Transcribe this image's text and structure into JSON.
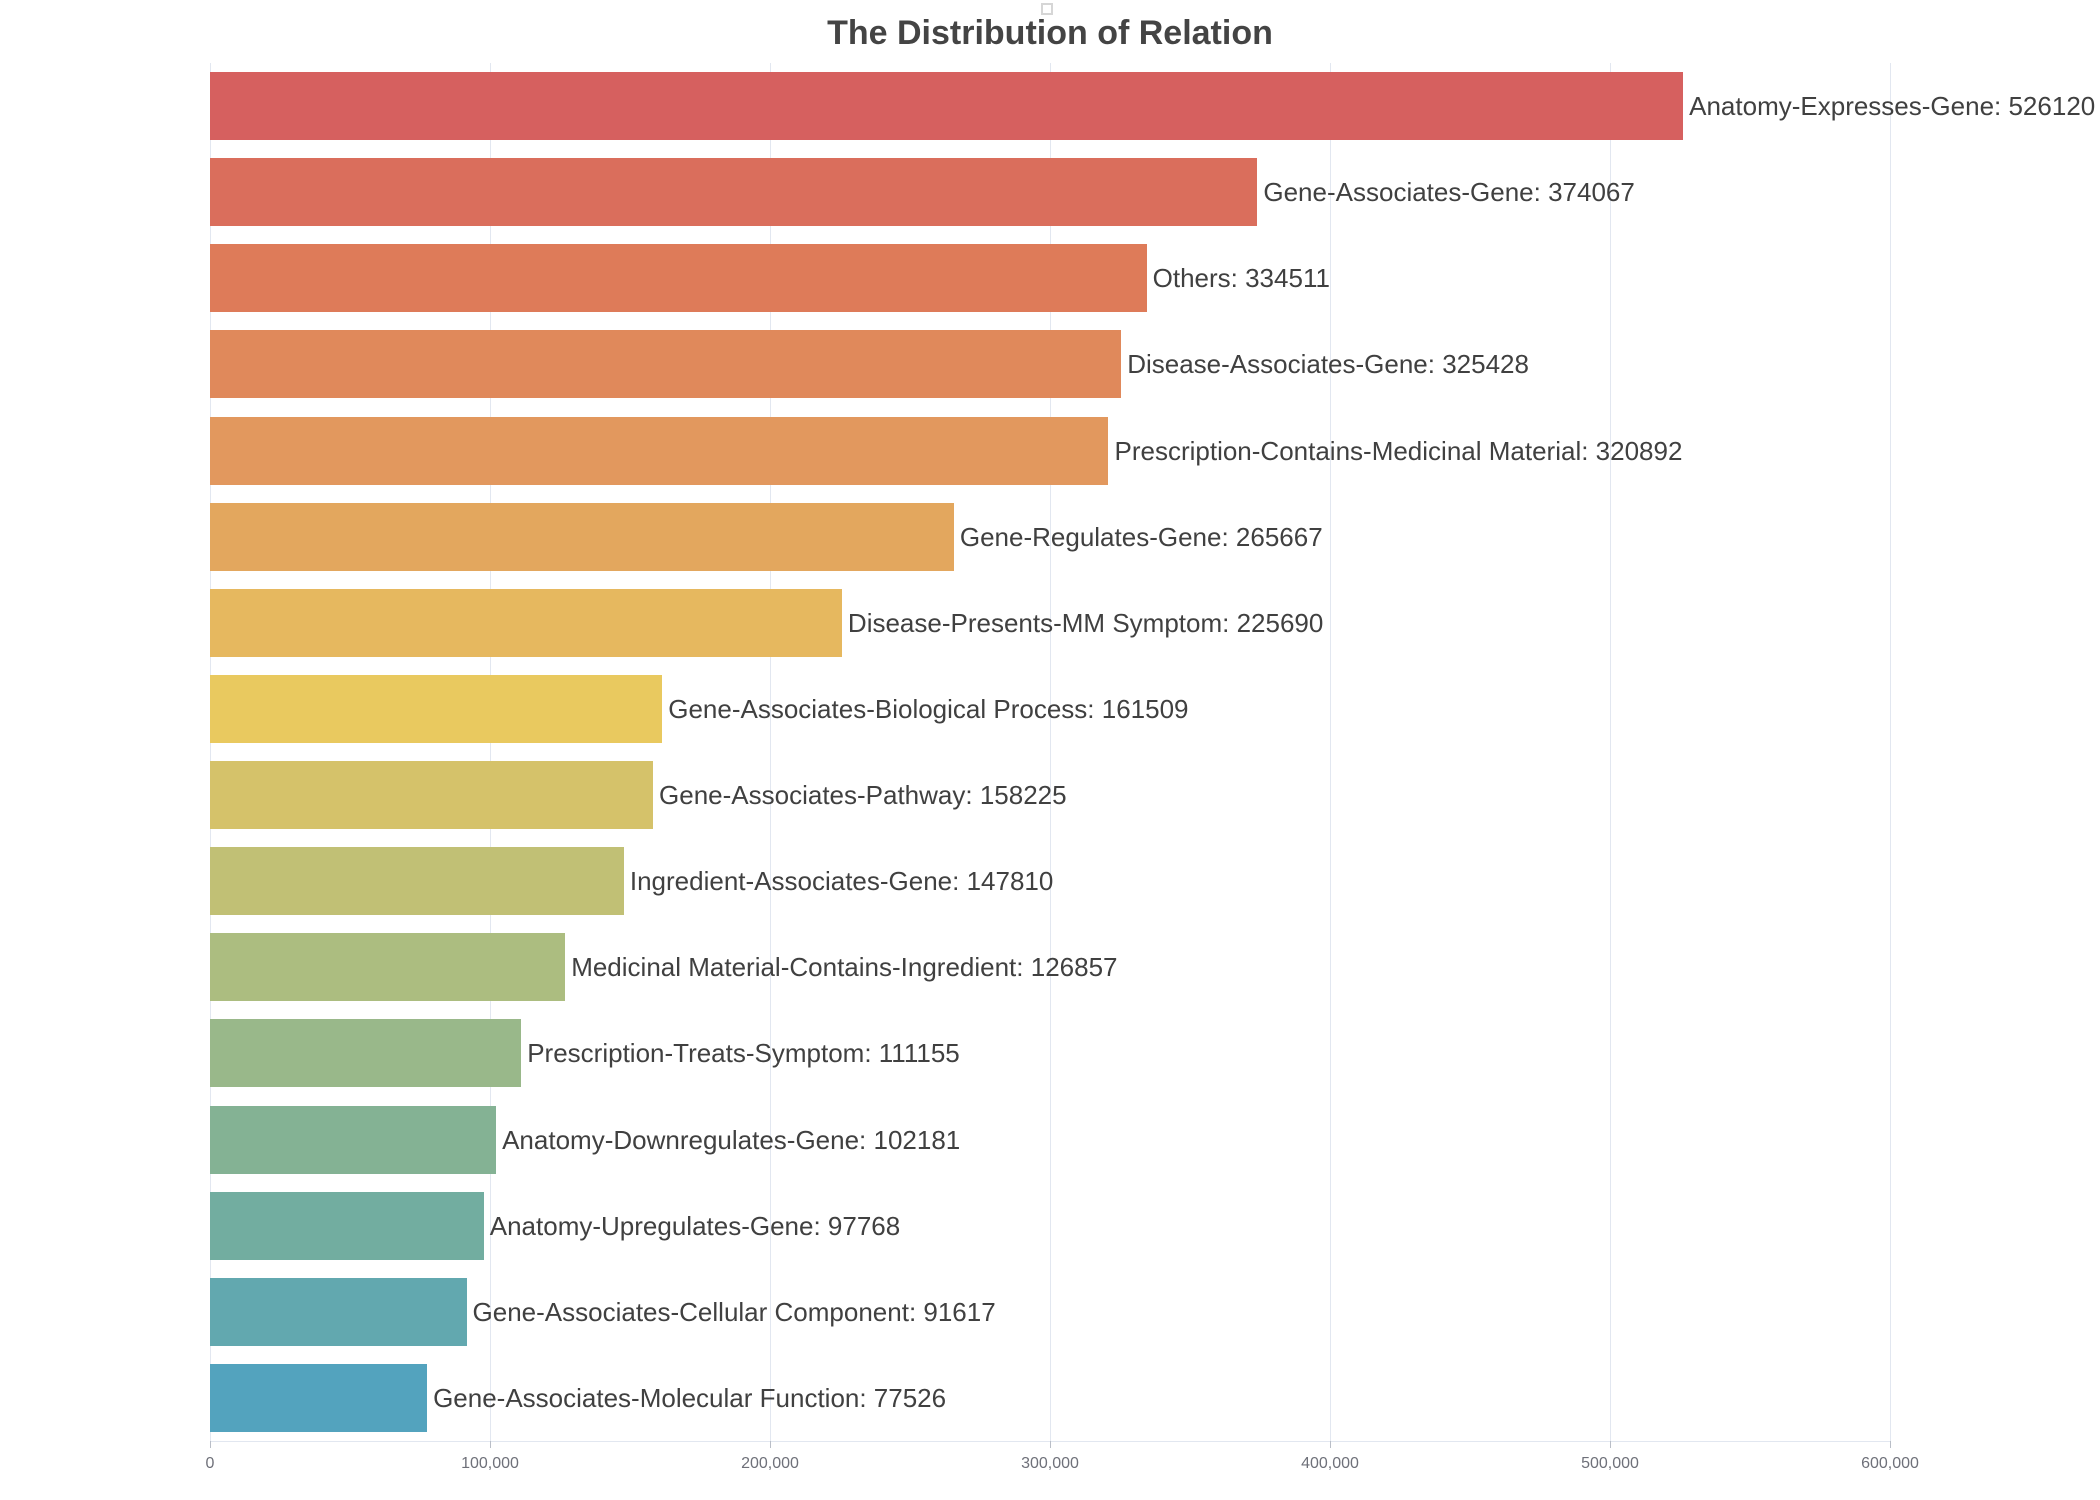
{
  "title": "The Distribution of Relation",
  "legend": {
    "marker_icon": "empty-square"
  },
  "chart_data": {
    "type": "bar",
    "orientation": "horizontal",
    "title": "The Distribution of Relation",
    "xlabel": "",
    "ylabel": "",
    "xlim": [
      0,
      600000
    ],
    "grid": true,
    "label_format": "{name}: {value}",
    "x_ticks": [
      {
        "value": 0,
        "label": "0"
      },
      {
        "value": 100000,
        "label": "100,000"
      },
      {
        "value": 200000,
        "label": "200,000"
      },
      {
        "value": 300000,
        "label": "300,000"
      },
      {
        "value": 400000,
        "label": "400,000"
      },
      {
        "value": 500000,
        "label": "500,000"
      },
      {
        "value": 600000,
        "label": "600,000"
      }
    ],
    "bars": [
      {
        "name": "Anatomy-Expresses-Gene",
        "value": 526120,
        "color": "#d6605f"
      },
      {
        "name": "Gene-Associates-Gene",
        "value": 374067,
        "color": "#da6e5c"
      },
      {
        "name": "Others",
        "value": 334511,
        "color": "#de7b59"
      },
      {
        "name": "Disease-Associates-Gene",
        "value": 325428,
        "color": "#e0895b"
      },
      {
        "name": "Prescription-Contains-Medicinal Material",
        "value": 320892,
        "color": "#e2985e"
      },
      {
        "name": "Gene-Regulates-Gene",
        "value": 265667,
        "color": "#e3a75e"
      },
      {
        "name": "Disease-Presents-MM Symptom",
        "value": 225690,
        "color": "#e6b85f"
      },
      {
        "name": "Gene-Associates-Biological Process",
        "value": 161509,
        "color": "#e9c95f"
      },
      {
        "name": "Gene-Associates-Pathway",
        "value": 158225,
        "color": "#d5c26a"
      },
      {
        "name": "Ingredient-Associates-Gene",
        "value": 147810,
        "color": "#c1c075"
      },
      {
        "name": "Medicinal Material-Contains-Ingredient",
        "value": 126857,
        "color": "#acbd80"
      },
      {
        "name": "Prescription-Treats-Symptom",
        "value": 111155,
        "color": "#99b88a"
      },
      {
        "name": "Anatomy-Downregulates-Gene",
        "value": 102181,
        "color": "#84b294"
      },
      {
        "name": "Anatomy-Upregulates-Gene",
        "value": 97768,
        "color": "#72ada0"
      },
      {
        "name": "Gene-Associates-Cellular Component",
        "value": 91617,
        "color": "#62a8af"
      },
      {
        "name": "Gene-Associates-Molecular Function",
        "value": 77526,
        "color": "#53a3be"
      }
    ],
    "style": {
      "grid_color": "#e2e7f0",
      "tick_color": "#b9bec7",
      "axis_label_color": "#6e7079",
      "bar_label_color": "#404040",
      "title_color": "#444444"
    }
  }
}
